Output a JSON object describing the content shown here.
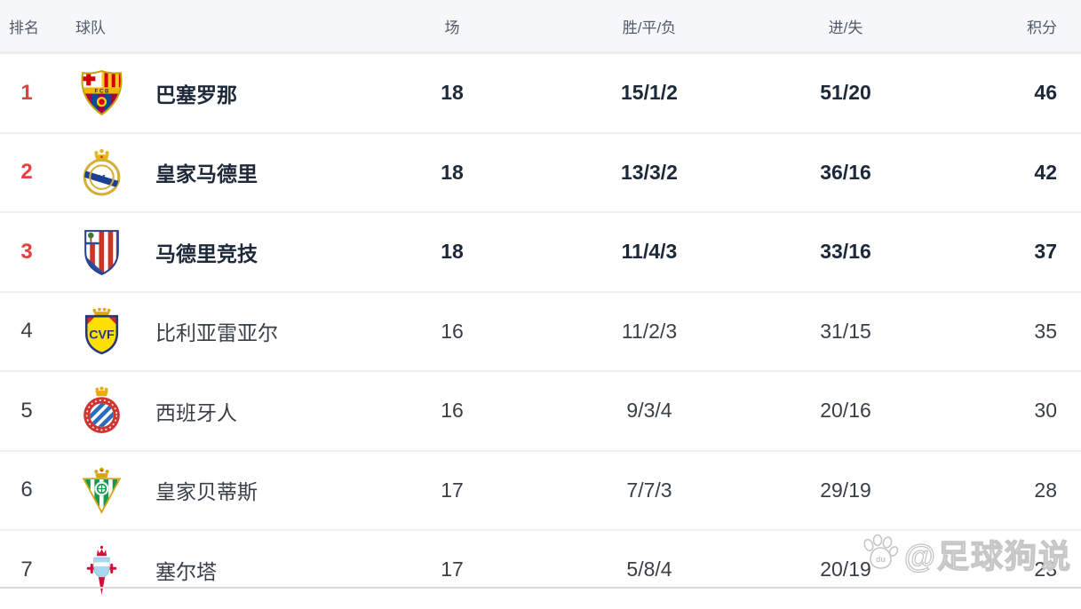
{
  "table": {
    "headers": {
      "rank": "排名",
      "team": "球队",
      "played": "场",
      "wdl": "胜/平/负",
      "goals": "进/失",
      "points": "积分"
    },
    "rows": [
      {
        "rank": "1",
        "team": "巴塞罗那",
        "played": "18",
        "wdl": "15/1/2",
        "goals": "51/20",
        "points": "46",
        "crest": "barcelona-crest"
      },
      {
        "rank": "2",
        "team": "皇家马德里",
        "played": "18",
        "wdl": "13/3/2",
        "goals": "36/16",
        "points": "42",
        "crest": "real-madrid-crest"
      },
      {
        "rank": "3",
        "team": "马德里竞技",
        "played": "18",
        "wdl": "11/4/3",
        "goals": "33/16",
        "points": "37",
        "crest": "atletico-madrid-crest"
      },
      {
        "rank": "4",
        "team": "比利亚雷亚尔",
        "played": "16",
        "wdl": "11/2/3",
        "goals": "31/15",
        "points": "35",
        "crest": "villarreal-crest"
      },
      {
        "rank": "5",
        "team": "西班牙人",
        "played": "16",
        "wdl": "9/3/4",
        "goals": "20/16",
        "points": "30",
        "crest": "espanyol-crest"
      },
      {
        "rank": "6",
        "team": "皇家贝蒂斯",
        "played": "17",
        "wdl": "7/7/3",
        "goals": "29/19",
        "points": "28",
        "crest": "real-betis-crest"
      },
      {
        "rank": "7",
        "team": "塞尔塔",
        "played": "17",
        "wdl": "5/8/4",
        "goals": "20/19",
        "points": "23",
        "crest": "celta-vigo-crest"
      }
    ]
  },
  "watermark": {
    "text": "@足球狗说",
    "paw_label": "du"
  },
  "colors": {
    "rank_top3": "#e2403f",
    "text_dark": "#1d2939",
    "text_regular": "#383f48",
    "header_bg": "#f6f7f9",
    "separator": "#efefef"
  }
}
